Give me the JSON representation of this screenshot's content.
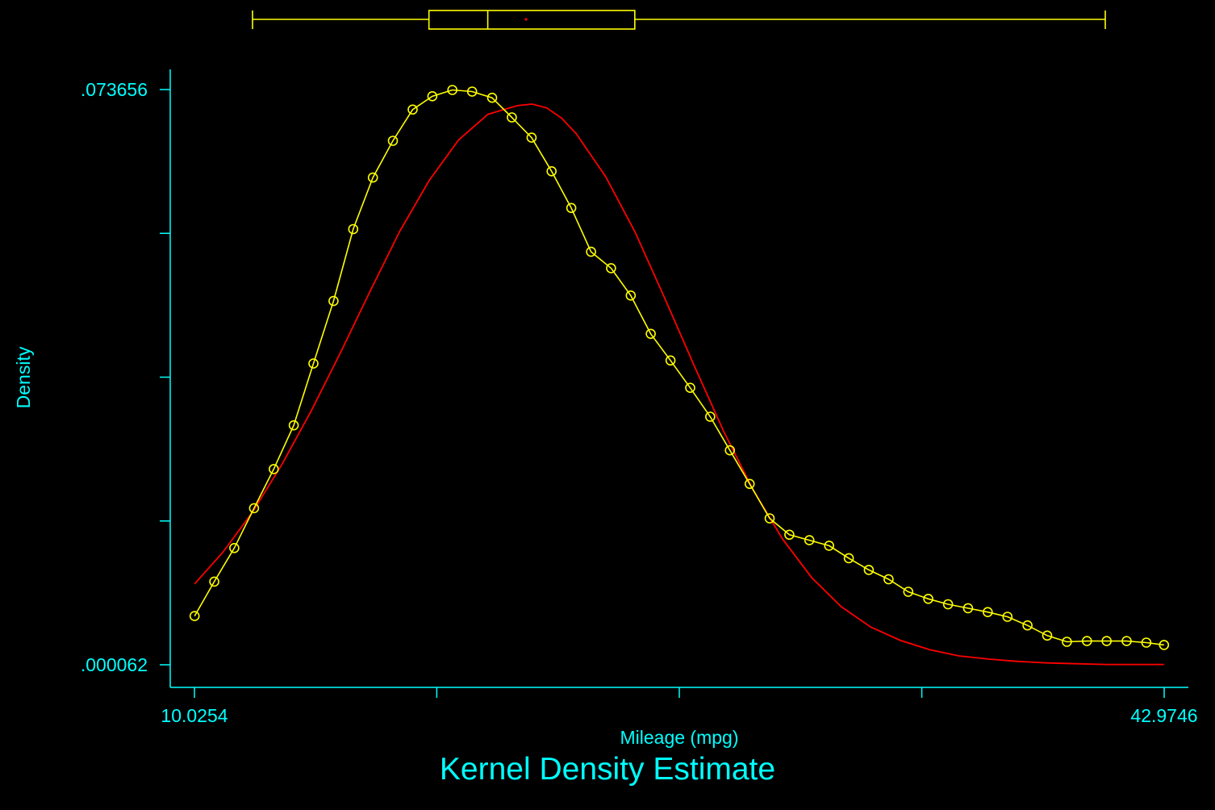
{
  "chart_data": {
    "type": "line",
    "title": "Kernel Density Estimate",
    "xlabel": "Mileage (mpg)",
    "ylabel": "Density",
    "xlim": [
      10.0254,
      42.9746
    ],
    "ylim": [
      6.2e-05,
      0.073656
    ],
    "x_tick_labels": [
      "10.0254",
      "42.9746"
    ],
    "x_tick_values": [
      10.0254,
      18.26,
      26.5,
      34.74,
      42.9746
    ],
    "y_tick_labels": [
      ".073656",
      ".000062"
    ],
    "y_tick_values": [
      6.2e-05,
      0.018461,
      0.036859,
      0.055258,
      0.073656
    ],
    "legend": "none",
    "grid": false,
    "colors": {
      "background": "#000000",
      "axis": "#00ffff",
      "kde": "#ffff00",
      "normal": "#ff0000",
      "boxplot": "#ffff00",
      "boxplot_mean": "#ff0000"
    },
    "series": [
      {
        "style": "line-circle",
        "x": [
          10.03,
          10.7,
          11.38,
          12.05,
          12.72,
          13.4,
          14.07,
          14.75,
          15.42,
          16.09,
          16.77,
          17.44,
          18.11,
          18.79,
          19.46,
          20.14,
          20.81,
          21.48,
          22.16,
          22.83,
          23.5,
          24.18,
          24.85,
          25.53,
          26.2,
          26.87,
          27.55,
          28.22,
          28.89,
          29.57,
          30.24,
          30.92,
          31.59,
          32.26,
          32.94,
          33.61,
          34.28,
          34.96,
          35.63,
          36.31,
          36.98,
          37.65,
          38.33,
          39.0,
          39.67,
          40.35,
          41.02,
          41.7,
          42.37,
          42.97
        ],
        "y": [
          0.0063,
          0.0107,
          0.015,
          0.0201,
          0.0251,
          0.0307,
          0.0386,
          0.0466,
          0.0558,
          0.0624,
          0.0671,
          0.0711,
          0.0728,
          0.0736,
          0.0734,
          0.0726,
          0.0701,
          0.0675,
          0.0632,
          0.0585,
          0.0529,
          0.0508,
          0.0473,
          0.0424,
          0.039,
          0.0355,
          0.0318,
          0.0275,
          0.0232,
          0.0188,
          0.0167,
          0.016,
          0.0153,
          0.0137,
          0.0122,
          0.011,
          0.0094,
          0.0085,
          0.0078,
          0.0073,
          0.0068,
          0.0062,
          0.0051,
          0.0038,
          0.003,
          0.0031,
          0.0031,
          0.0031,
          0.0029,
          0.0026
        ]
      },
      {
        "style": "line",
        "x": [
          10.03,
          11.0,
          12.0,
          13.0,
          14.0,
          15.0,
          16.0,
          17.0,
          18.0,
          19.0,
          20.0,
          21.0,
          21.5,
          22.0,
          22.5,
          23.0,
          24.0,
          25.0,
          26.0,
          27.0,
          28.0,
          29.0,
          30.0,
          31.0,
          32.0,
          33.0,
          34.0,
          35.0,
          36.0,
          37.0,
          38.0,
          39.0,
          40.0,
          41.0,
          42.0,
          42.97
        ],
        "y": [
          0.0104,
          0.0145,
          0.0196,
          0.0257,
          0.0326,
          0.0401,
          0.0479,
          0.0555,
          0.062,
          0.0672,
          0.0705,
          0.0716,
          0.0718,
          0.0713,
          0.07,
          0.068,
          0.0625,
          0.0554,
          0.047,
          0.0384,
          0.03,
          0.0225,
          0.0162,
          0.0112,
          0.0075,
          0.0049,
          0.0032,
          0.002,
          0.0012,
          0.0008,
          0.0005,
          0.0003,
          0.0002,
          0.0001,
          0.0001,
          0.0001
        ]
      }
    ],
    "boxplot": {
      "whisker_low": 12.0,
      "q1": 18.0,
      "median": 20.0,
      "mean": 21.3,
      "q3": 25.0,
      "whisker_high": 41.0
    }
  }
}
